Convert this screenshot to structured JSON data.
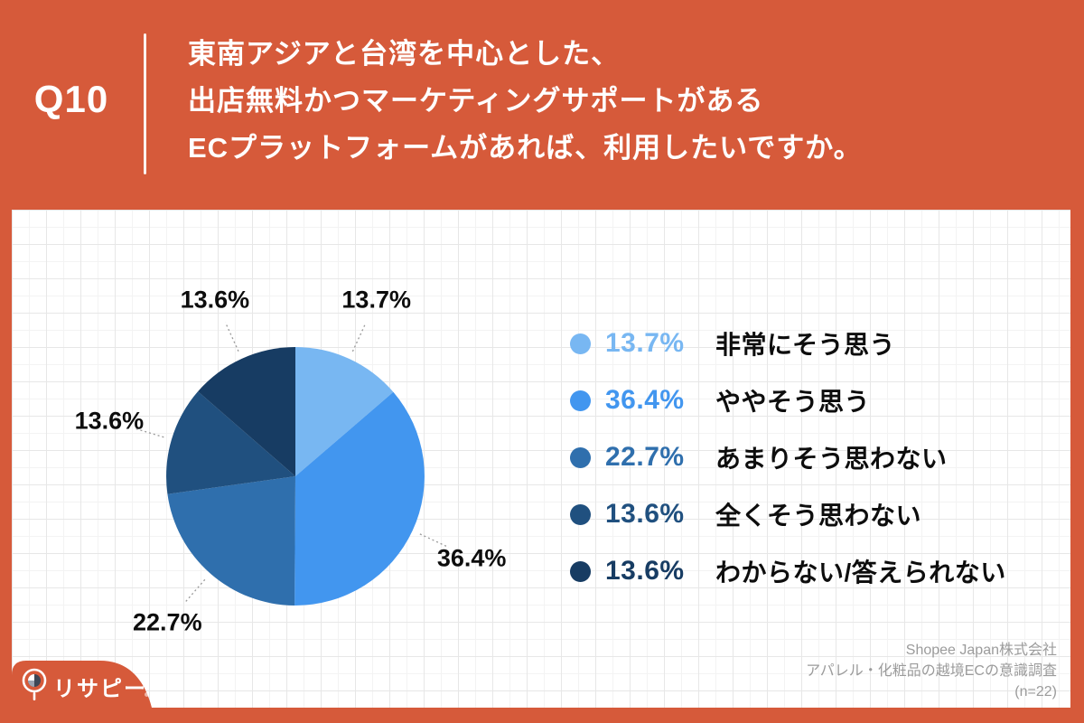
{
  "header": {
    "question_number": "Q10",
    "question_lines": [
      "東南アジアと台湾を中心とした、",
      "出店無料かつマーケティングサポートがある",
      "ECプラットフォームがあれば、利用したいですか。"
    ]
  },
  "chart_data": {
    "type": "pie",
    "title": "",
    "start_angle_deg": 0,
    "direction": "clockwise",
    "legend_position": "right",
    "slices": [
      {
        "label": "非常にそう思う",
        "value": 13.7,
        "display": "13.7%",
        "color": "#78B7F2"
      },
      {
        "label": "ややそう思う",
        "value": 36.4,
        "display": "36.4%",
        "color": "#4296EF"
      },
      {
        "label": "あまりそう思わない",
        "value": 22.7,
        "display": "22.7%",
        "color": "#2F6FAD"
      },
      {
        "label": "全くそう思わない",
        "value": 13.6,
        "display": "13.6%",
        "color": "#20507F"
      },
      {
        "label": "わからない/答えられない",
        "value": 13.6,
        "display": "13.6%",
        "color": "#173C63"
      }
    ]
  },
  "footer": {
    "source_lines": [
      "Shopee Japan株式会社",
      "アパレル・化粧品の越境ECの意識調査",
      "(n=22)"
    ]
  },
  "logo": {
    "text": "リサピー"
  },
  "colors": {
    "background": "#D65A3A",
    "card": "#FFFFFF",
    "text_on_background": "#FFFFFF",
    "pie_label_text": "#0D0D0D",
    "footer_text": "#9B9B9B",
    "leader_line": "#999999"
  }
}
